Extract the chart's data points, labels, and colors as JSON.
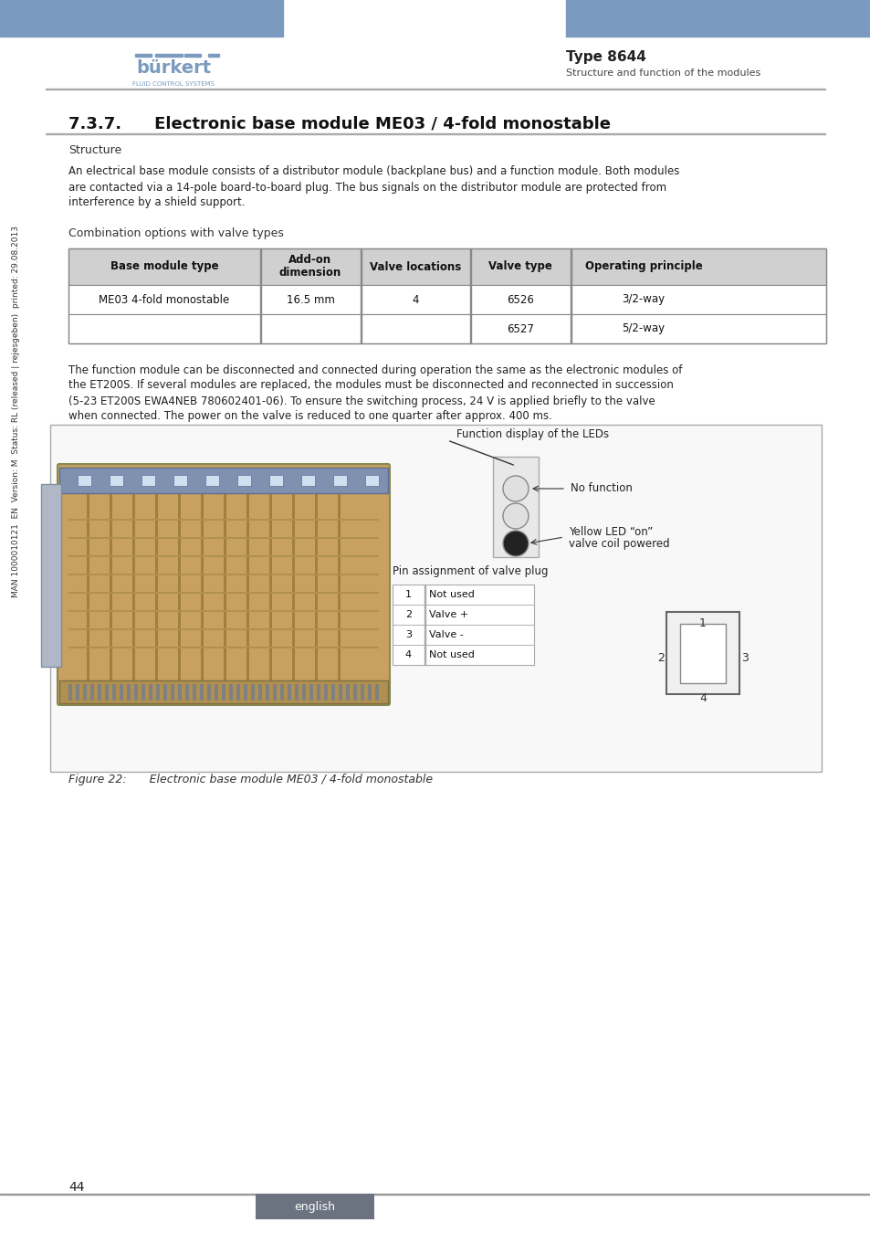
{
  "bg_color": "#ffffff",
  "header_blue": "#7a9bbf",
  "header_text_color": "#ffffff",
  "page_number": "44",
  "type_label": "Type 8644",
  "subtitle_label": "Structure and function of the modules",
  "section_title": "7.3.7.  Electronic base module ME03 / 4-fold monostable",
  "structure_label": "Structure",
  "body_text": "An electrical base module consists of a distributor module (backplane bus) and a function module. Both modules\nare contacted via a 14-pole board-to-board plug. The bus signals on the distributor module are protected from\ninterference by a shield support.",
  "combo_label": "Combination options with valve types",
  "table_headers": [
    "Base module type",
    "Add-on\ndimension",
    "Valve locations",
    "Valve type",
    "Operating principle"
  ],
  "table_row1": [
    "ME03 4-fold monostable",
    "16.5 mm",
    "4",
    "6526",
    "3/2-way"
  ],
  "table_row2": [
    "",
    "",
    "",
    "6527",
    "5/2-way"
  ],
  "para_text": "The function module can be disconnected and connected during operation the same as the electronic modules of\nthe ET200S. If several modules are replaced, the modules must be disconnected and reconnected in succession\n(5-23 ET200S EWA4NEB 780602401-06). To ensure the switching process, 24 V is applied briefly to the valve\nwhen connected. The power on the valve is reduced to one quarter after approx. 400 ms.",
  "figure_caption": "Figure 22:  Electronic base module ME03 / 4-fold monostable",
  "led_label1": "Function display of the LEDs",
  "led_label2": "No function",
  "led_label3": "Yellow LED “on”\n     valve coil powered",
  "pin_label": "Pin assignment of valve plug",
  "pin_rows": [
    [
      "1",
      "Not used"
    ],
    [
      "2",
      "Valve +"
    ],
    [
      "3",
      "Valve -"
    ],
    [
      "4",
      "Not used"
    ]
  ],
  "sidebar_text": "MAN 1000010121  EN  Version: M  Status: RL (released | rejesgeben)  printed: 29.08.2013",
  "english_bg": "#6b7280",
  "footer_line_color": "#999999",
  "table_header_bg": "#d0d0d0",
  "table_border": "#888888"
}
